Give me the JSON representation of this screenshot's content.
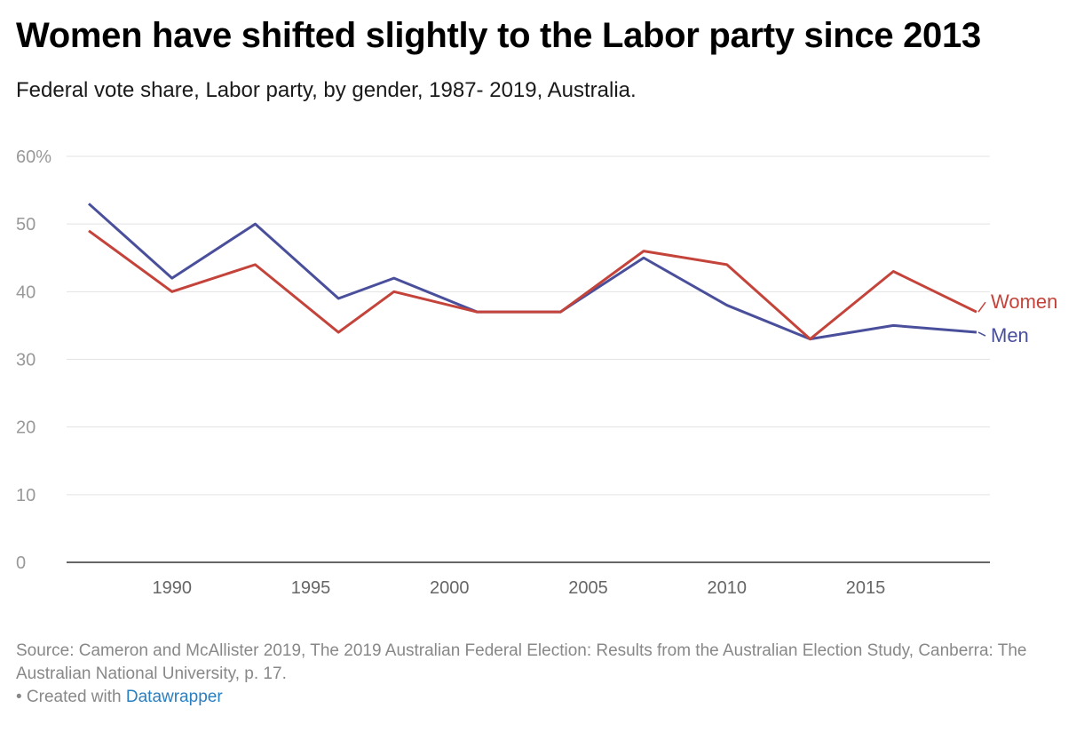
{
  "title": "Women have shifted slightly to the Labor party since 2013",
  "subtitle": "Federal vote share, Labor party, by gender, 1987- 2019, Australia.",
  "footer": {
    "source": "Source: Cameron and McAllister 2019, The 2019 Australian Federal Election: Results from the Australian Election Study, Canberra: The Australian National University, p. 17.",
    "created_prefix": "• Created with ",
    "created_link": "Datawrapper"
  },
  "chart_data": {
    "type": "line",
    "title": "Women have shifted slightly to the Labor party since 2013",
    "x": [
      1987,
      1990,
      1993,
      1996,
      1998,
      2001,
      2004,
      2007,
      2010,
      2013,
      2016,
      2019
    ],
    "series": [
      {
        "name": "Women",
        "color": "#c4433a",
        "values": [
          49,
          40,
          44,
          34,
          40,
          37,
          37,
          46,
          44,
          33,
          43,
          37
        ]
      },
      {
        "name": "Men",
        "color": "#4a4f9c",
        "values": [
          53,
          42,
          50,
          39,
          42,
          37,
          37,
          45,
          38,
          33,
          35,
          34
        ]
      }
    ],
    "ylim": [
      0,
      60
    ],
    "xlim": [
      1987,
      2019
    ],
    "yticks": [
      "0",
      "10",
      "20",
      "30",
      "40",
      "50",
      "60%"
    ],
    "yticks_values": [
      0,
      10,
      20,
      30,
      40,
      50,
      60
    ],
    "xticks": [
      1990,
      1995,
      2000,
      2005,
      2010,
      2015
    ],
    "grid": true,
    "legend": "line-end labels"
  }
}
